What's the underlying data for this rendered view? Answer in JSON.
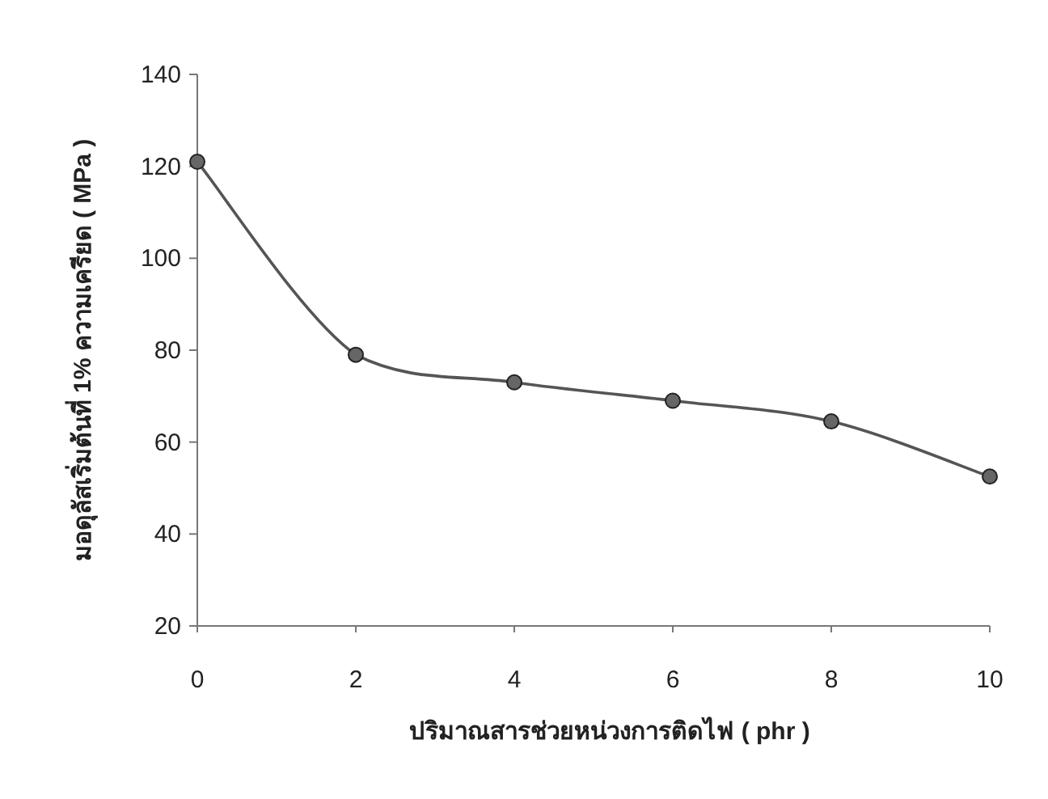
{
  "chart_data": {
    "type": "line",
    "xlabel": "ปริมาณสารช่วยหน่วงการติดไฟ ( phr )",
    "ylabel": "มอดุลัสเริ่มต้นที่ 1% ความเครียด ( MPa )",
    "x": [
      0,
      2,
      4,
      6,
      8,
      10
    ],
    "series": [
      {
        "color": "#555555",
        "values": [
          121,
          79,
          73,
          69,
          64.5,
          52.5
        ]
      }
    ],
    "xlim": [
      0,
      10
    ],
    "xticks": [
      0,
      2,
      4,
      6,
      8,
      10
    ],
    "ylim": [
      20,
      140
    ],
    "yticks": [
      20,
      40,
      60,
      80,
      100,
      120,
      140
    ],
    "marker": "circle",
    "line_style": "solid"
  }
}
